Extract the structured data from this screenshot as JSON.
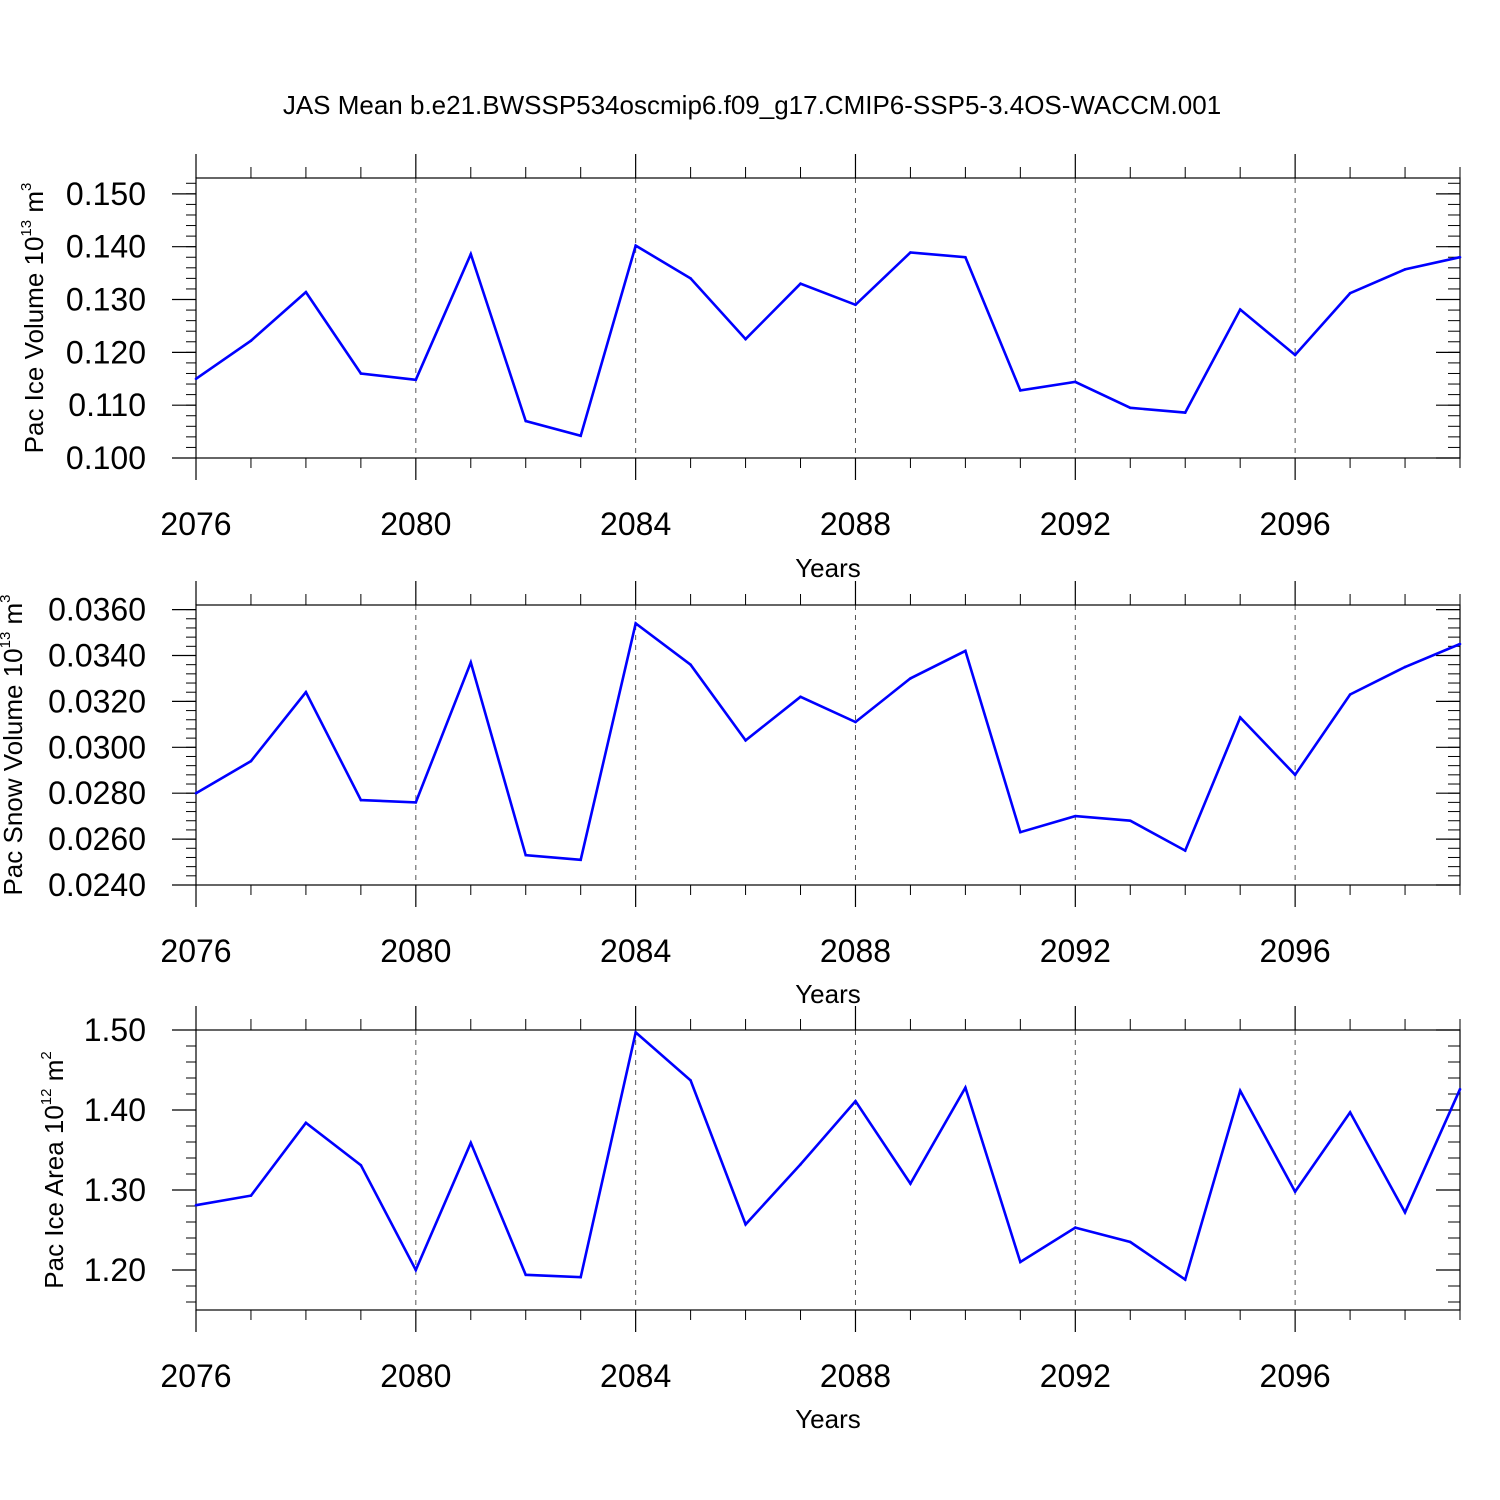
{
  "figure": {
    "title": "JAS Mean b.e21.BWSSP534oscmip6.f09_g17.CMIP6-SSP5-3.4OS-WACCM.001"
  },
  "chart_data": [
    {
      "type": "line",
      "xlabel": "Years",
      "ylabel_main": "Pac Ice Volume 10",
      "ylabel_exp": "13",
      "ylabel_unit": " m",
      "ylabel_unit_exp": "3",
      "xlim": [
        2076,
        2099
      ],
      "ylim": [
        0.1,
        0.153
      ],
      "xticks": [
        "2076",
        "2080",
        "2084",
        "2088",
        "2092",
        "2096"
      ],
      "yticks": [
        "0.100",
        "0.110",
        "0.120",
        "0.130",
        "0.140",
        "0.150"
      ],
      "grid_x": true,
      "line_color": "#0000ff",
      "x": [
        2076,
        2077,
        2078,
        2079,
        2080,
        2081,
        2082,
        2083,
        2084,
        2085,
        2086,
        2087,
        2088,
        2089,
        2090,
        2091,
        2092,
        2093,
        2094,
        2095,
        2096,
        2097,
        2098,
        2099
      ],
      "y": [
        0.115,
        0.1222,
        0.1314,
        0.116,
        0.1148,
        0.1386,
        0.107,
        0.1042,
        0.1402,
        0.134,
        0.1225,
        0.133,
        0.129,
        0.1389,
        0.138,
        0.1128,
        0.1144,
        0.1095,
        0.1086,
        0.1281,
        0.1195,
        0.1312,
        0.1357,
        0.138
      ]
    },
    {
      "type": "line",
      "xlabel": "Years",
      "ylabel_main": "Pac Snow Volume 10",
      "ylabel_exp": "13",
      "ylabel_unit": " m",
      "ylabel_unit_exp": "3",
      "xlim": [
        2076,
        2099
      ],
      "ylim": [
        0.024,
        0.0362
      ],
      "xticks": [
        "2076",
        "2080",
        "2084",
        "2088",
        "2092",
        "2096"
      ],
      "yticks": [
        "0.0240",
        "0.0260",
        "0.0280",
        "0.0300",
        "0.0320",
        "0.0340",
        "0.0360"
      ],
      "grid_x": true,
      "line_color": "#0000ff",
      "x": [
        2076,
        2077,
        2078,
        2079,
        2080,
        2081,
        2082,
        2083,
        2084,
        2085,
        2086,
        2087,
        2088,
        2089,
        2090,
        2091,
        2092,
        2093,
        2094,
        2095,
        2096,
        2097,
        2098,
        2099
      ],
      "y": [
        0.028,
        0.0294,
        0.0324,
        0.0277,
        0.0276,
        0.0337,
        0.0253,
        0.0251,
        0.0354,
        0.0336,
        0.0303,
        0.0322,
        0.0311,
        0.033,
        0.0342,
        0.0263,
        0.027,
        0.0268,
        0.0255,
        0.0313,
        0.0288,
        0.0323,
        0.0335,
        0.0345
      ]
    },
    {
      "type": "line",
      "xlabel": "Years",
      "ylabel_main": "Pac Ice Area 10",
      "ylabel_exp": "12",
      "ylabel_unit": " m",
      "ylabel_unit_exp": "2",
      "xlim": [
        2076,
        2099
      ],
      "ylim": [
        1.15,
        1.5
      ],
      "xticks": [
        "2076",
        "2080",
        "2084",
        "2088",
        "2092",
        "2096"
      ],
      "yticks": [
        "1.20",
        "1.30",
        "1.40",
        "1.50"
      ],
      "grid_x": true,
      "line_color": "#0000ff",
      "x": [
        2076,
        2077,
        2078,
        2079,
        2080,
        2081,
        2082,
        2083,
        2084,
        2085,
        2086,
        2087,
        2088,
        2089,
        2090,
        2091,
        2092,
        2093,
        2094,
        2095,
        2096,
        2097,
        2098,
        2099
      ],
      "y": [
        1.281,
        1.293,
        1.384,
        1.331,
        1.2,
        1.359,
        1.194,
        1.191,
        1.497,
        1.437,
        1.257,
        1.332,
        1.411,
        1.308,
        1.428,
        1.21,
        1.253,
        1.235,
        1.188,
        1.424,
        1.298,
        1.397,
        1.272,
        1.426
      ]
    }
  ]
}
